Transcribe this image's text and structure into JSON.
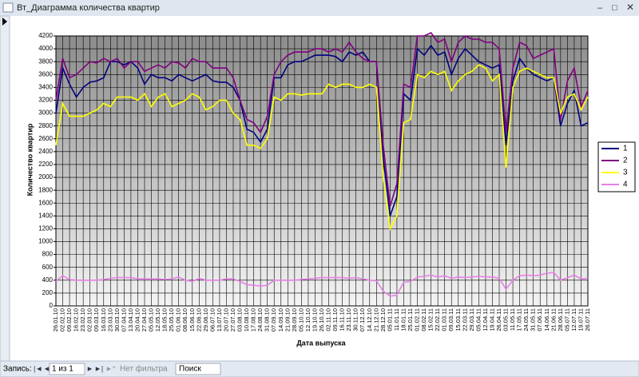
{
  "window": {
    "title": "Вт_Диаграмма количества квартир"
  },
  "chart_data": {
    "type": "line",
    "x_label": "Дата выпуска",
    "y_label": "Количество квартир",
    "categories": [
      "26.01.10",
      "02.02.10",
      "09.02.10",
      "16.02.10",
      "23.02.10",
      "02.03.10",
      "09.03.10",
      "16.03.10",
      "23.03.10",
      "30.03.10",
      "07.04.10",
      "13.04.10",
      "20.04.10",
      "27.04.10",
      "05.05.10",
      "12.05.10",
      "18.05.10",
      "25.05.10",
      "01.06.10",
      "08.06.10",
      "15.06.10",
      "22.06.10",
      "29.06.10",
      "06.07.10",
      "13.07.10",
      "20.07.10",
      "27.07.10",
      "03.08.10",
      "10.08.10",
      "17.08.10",
      "24.08.10",
      "31.08.10",
      "07.09.10",
      "14.09.10",
      "21.09.10",
      "28.09.10",
      "05.10.10",
      "12.10.10",
      "19.10.10",
      "26.10.10",
      "02.11.10",
      "09.11.10",
      "16.11.10",
      "23.11.10",
      "30.11.10",
      "07.12.10",
      "14.12.10",
      "21.12.10",
      "28.12.10",
      "05.01.11",
      "11.01.11",
      "18.01.11",
      "25.01.11",
      "01.02.11",
      "08.02.11",
      "15.02.11",
      "22.02.11",
      "01.03.11",
      "09.03.11",
      "15.03.11",
      "22.03.11",
      "29.03.11",
      "05.04.11",
      "12.04.11",
      "19.04.11",
      "26.04.11",
      "03.05.11",
      "11.05.11",
      "17.05.11",
      "24.05.11",
      "31.05.11",
      "07.06.11",
      "14.06.11",
      "21.06.11",
      "28.06.11",
      "05.07.11",
      "12.07.11",
      "19.07.11",
      "26.07.11"
    ],
    "series": [
      {
        "name": "1",
        "color": "#000080",
        "values": [
          3000,
          3700,
          3450,
          3250,
          3400,
          3480,
          3500,
          3550,
          3800,
          3800,
          3750,
          3800,
          3700,
          3450,
          3600,
          3550,
          3550,
          3500,
          3600,
          3550,
          3500,
          3550,
          3600,
          3500,
          3480,
          3480,
          3400,
          3200,
          2750,
          2700,
          2550,
          2750,
          3550,
          3550,
          3750,
          3800,
          3800,
          3850,
          3900,
          3900,
          3900,
          3880,
          3800,
          3950,
          3900,
          3950,
          3800,
          3800,
          2300,
          1400,
          1700,
          3300,
          3200,
          4000,
          3900,
          4050,
          3900,
          3950,
          3600,
          3850,
          4000,
          3900,
          3800,
          3750,
          3700,
          3750,
          2500,
          3500,
          3850,
          3700,
          3600,
          3550,
          3500,
          3550,
          2800,
          3150,
          3350,
          2800,
          2850
        ]
      },
      {
        "name": "2",
        "color": "#800080",
        "values": [
          3200,
          3850,
          3550,
          3600,
          3700,
          3800,
          3780,
          3850,
          3800,
          3850,
          3700,
          3800,
          3800,
          3650,
          3700,
          3750,
          3700,
          3800,
          3780,
          3700,
          3850,
          3800,
          3800,
          3700,
          3700,
          3700,
          3550,
          3200,
          2900,
          2850,
          2700,
          2950,
          3600,
          3800,
          3900,
          3950,
          3950,
          3950,
          4000,
          4000,
          3950,
          4000,
          3950,
          4100,
          3950,
          3850,
          3800,
          3800,
          2500,
          1550,
          1900,
          3450,
          3400,
          4200,
          4200,
          4250,
          4100,
          4150,
          3800,
          4100,
          4200,
          4150,
          4150,
          4100,
          4100,
          4000,
          2700,
          3700,
          4100,
          4050,
          3850,
          3900,
          3950,
          4000,
          2900,
          3500,
          3700,
          3100,
          3350
        ]
      },
      {
        "name": "3",
        "color": "#ffff00",
        "values": [
          2500,
          3150,
          2950,
          2950,
          2950,
          3000,
          3050,
          3150,
          3100,
          3250,
          3250,
          3250,
          3200,
          3300,
          3100,
          3250,
          3300,
          3100,
          3150,
          3200,
          3300,
          3250,
          3050,
          3100,
          3200,
          3200,
          3000,
          2900,
          2500,
          2500,
          2450,
          2600,
          3250,
          3200,
          3300,
          3300,
          3280,
          3300,
          3300,
          3300,
          3450,
          3400,
          3450,
          3450,
          3400,
          3400,
          3450,
          3400,
          2000,
          1200,
          1400,
          2850,
          2900,
          3600,
          3550,
          3650,
          3600,
          3650,
          3350,
          3500,
          3600,
          3650,
          3750,
          3700,
          3500,
          3600,
          2150,
          3400,
          3650,
          3700,
          3650,
          3600,
          3550,
          3550,
          3000,
          3250,
          3300,
          3050,
          3250
        ]
      },
      {
        "name": "4",
        "color": "#e680e6",
        "values": [
          380,
          470,
          410,
          400,
          400,
          400,
          400,
          410,
          430,
          440,
          440,
          440,
          420,
          420,
          420,
          420,
          410,
          420,
          450,
          400,
          380,
          430,
          400,
          400,
          400,
          420,
          420,
          380,
          330,
          320,
          310,
          320,
          400,
          400,
          400,
          400,
          410,
          420,
          430,
          440,
          440,
          440,
          440,
          430,
          440,
          420,
          400,
          390,
          230,
          150,
          170,
          370,
          380,
          450,
          460,
          480,
          450,
          470,
          430,
          450,
          440,
          450,
          460,
          450,
          450,
          430,
          260,
          400,
          470,
          480,
          470,
          480,
          510,
          520,
          400,
          440,
          480,
          420,
          430
        ]
      }
    ],
    "ylim": [
      0,
      4200
    ],
    "yticks": [
      0,
      200,
      400,
      600,
      800,
      1000,
      1200,
      1400,
      1600,
      1800,
      2000,
      2200,
      2400,
      2600,
      2800,
      3000,
      3200,
      3400,
      3600,
      3800,
      4000,
      4200
    ],
    "grid": true,
    "legend": "right"
  },
  "nav": {
    "label": "Запись:",
    "position": "1 из 1",
    "filter": "Нет фильтра",
    "search": "Поиск"
  }
}
